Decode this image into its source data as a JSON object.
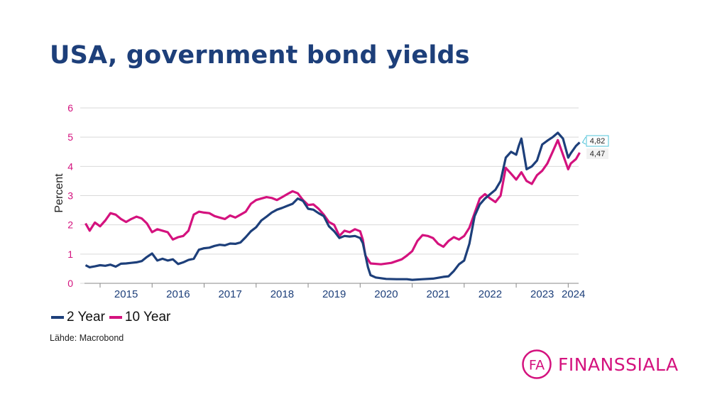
{
  "title": "USA, government bond yields",
  "source": "Lähde: Macrobond",
  "logo": {
    "mark": "FA",
    "text": "FINANSSIALA"
  },
  "colors": {
    "two_year": "#1d3f7a",
    "ten_year": "#d4127e",
    "title": "#1d3f7a",
    "grid": "#d9d9d9"
  },
  "chart_data": {
    "type": "line",
    "title": "",
    "xlabel": "",
    "ylabel": "Percent",
    "xlim": [
      2014.7,
      2024.2
    ],
    "ylim": [
      0,
      6
    ],
    "y_ticks": [
      "0",
      "1",
      "2",
      "3",
      "4",
      "5",
      "6"
    ],
    "x_ticks": [
      "2015",
      "2016",
      "2017",
      "2018",
      "2019",
      "2020",
      "2021",
      "2022",
      "2023",
      "2024"
    ],
    "grid": true,
    "legend_position": "bottom-left",
    "series": [
      {
        "name": "2 Year",
        "color": "#1d3f7a",
        "end_label": "4,82",
        "points": [
          [
            2014.72,
            0.62
          ],
          [
            2014.8,
            0.55
          ],
          [
            2014.9,
            0.58
          ],
          [
            2015.0,
            0.62
          ],
          [
            2015.1,
            0.6
          ],
          [
            2015.2,
            0.64
          ],
          [
            2015.3,
            0.57
          ],
          [
            2015.4,
            0.67
          ],
          [
            2015.5,
            0.68
          ],
          [
            2015.6,
            0.7
          ],
          [
            2015.7,
            0.72
          ],
          [
            2015.8,
            0.76
          ],
          [
            2015.9,
            0.9
          ],
          [
            2016.0,
            1.02
          ],
          [
            2016.1,
            0.78
          ],
          [
            2016.2,
            0.84
          ],
          [
            2016.3,
            0.78
          ],
          [
            2016.4,
            0.82
          ],
          [
            2016.5,
            0.66
          ],
          [
            2016.6,
            0.72
          ],
          [
            2016.7,
            0.8
          ],
          [
            2016.8,
            0.84
          ],
          [
            2016.9,
            1.15
          ],
          [
            2017.0,
            1.2
          ],
          [
            2017.1,
            1.22
          ],
          [
            2017.2,
            1.28
          ],
          [
            2017.3,
            1.32
          ],
          [
            2017.4,
            1.3
          ],
          [
            2017.5,
            1.36
          ],
          [
            2017.6,
            1.35
          ],
          [
            2017.7,
            1.4
          ],
          [
            2017.8,
            1.58
          ],
          [
            2017.9,
            1.78
          ],
          [
            2018.0,
            1.92
          ],
          [
            2018.1,
            2.15
          ],
          [
            2018.2,
            2.28
          ],
          [
            2018.3,
            2.42
          ],
          [
            2018.4,
            2.52
          ],
          [
            2018.5,
            2.58
          ],
          [
            2018.6,
            2.65
          ],
          [
            2018.7,
            2.72
          ],
          [
            2018.8,
            2.9
          ],
          [
            2018.9,
            2.82
          ],
          [
            2019.0,
            2.55
          ],
          [
            2019.1,
            2.52
          ],
          [
            2019.2,
            2.4
          ],
          [
            2019.3,
            2.3
          ],
          [
            2019.4,
            1.95
          ],
          [
            2019.5,
            1.78
          ],
          [
            2019.6,
            1.55
          ],
          [
            2019.7,
            1.62
          ],
          [
            2019.8,
            1.6
          ],
          [
            2019.9,
            1.62
          ],
          [
            2020.0,
            1.55
          ],
          [
            2020.05,
            1.38
          ],
          [
            2020.15,
            0.55
          ],
          [
            2020.2,
            0.28
          ],
          [
            2020.3,
            0.2
          ],
          [
            2020.5,
            0.15
          ],
          [
            2020.7,
            0.14
          ],
          [
            2020.9,
            0.14
          ],
          [
            2021.0,
            0.12
          ],
          [
            2021.2,
            0.14
          ],
          [
            2021.4,
            0.16
          ],
          [
            2021.6,
            0.22
          ],
          [
            2021.7,
            0.24
          ],
          [
            2021.8,
            0.42
          ],
          [
            2021.9,
            0.65
          ],
          [
            2022.0,
            0.78
          ],
          [
            2022.1,
            1.35
          ],
          [
            2022.2,
            2.3
          ],
          [
            2022.3,
            2.7
          ],
          [
            2022.4,
            2.9
          ],
          [
            2022.5,
            3.05
          ],
          [
            2022.6,
            3.2
          ],
          [
            2022.7,
            3.5
          ],
          [
            2022.8,
            4.3
          ],
          [
            2022.9,
            4.5
          ],
          [
            2023.0,
            4.4
          ],
          [
            2023.05,
            4.7
          ],
          [
            2023.1,
            4.95
          ],
          [
            2023.2,
            3.9
          ],
          [
            2023.3,
            4.0
          ],
          [
            2023.4,
            4.2
          ],
          [
            2023.5,
            4.75
          ],
          [
            2023.6,
            4.88
          ],
          [
            2023.7,
            5.0
          ],
          [
            2023.8,
            5.15
          ],
          [
            2023.9,
            4.95
          ],
          [
            2024.0,
            4.3
          ],
          [
            2024.05,
            4.45
          ],
          [
            2024.15,
            4.7
          ],
          [
            2024.22,
            4.82
          ]
        ]
      },
      {
        "name": "10 Year",
        "color": "#d4127e",
        "end_label": "4,47",
        "points": [
          [
            2014.72,
            2.05
          ],
          [
            2014.8,
            1.8
          ],
          [
            2014.9,
            2.08
          ],
          [
            2015.0,
            1.95
          ],
          [
            2015.1,
            2.15
          ],
          [
            2015.2,
            2.4
          ],
          [
            2015.3,
            2.35
          ],
          [
            2015.4,
            2.2
          ],
          [
            2015.5,
            2.1
          ],
          [
            2015.6,
            2.2
          ],
          [
            2015.7,
            2.28
          ],
          [
            2015.8,
            2.22
          ],
          [
            2015.9,
            2.05
          ],
          [
            2016.0,
            1.75
          ],
          [
            2016.1,
            1.85
          ],
          [
            2016.2,
            1.8
          ],
          [
            2016.3,
            1.75
          ],
          [
            2016.4,
            1.5
          ],
          [
            2016.5,
            1.58
          ],
          [
            2016.6,
            1.62
          ],
          [
            2016.7,
            1.8
          ],
          [
            2016.8,
            2.35
          ],
          [
            2016.9,
            2.45
          ],
          [
            2017.0,
            2.42
          ],
          [
            2017.1,
            2.4
          ],
          [
            2017.2,
            2.3
          ],
          [
            2017.3,
            2.25
          ],
          [
            2017.4,
            2.2
          ],
          [
            2017.5,
            2.32
          ],
          [
            2017.6,
            2.25
          ],
          [
            2017.7,
            2.35
          ],
          [
            2017.8,
            2.45
          ],
          [
            2017.9,
            2.72
          ],
          [
            2018.0,
            2.85
          ],
          [
            2018.1,
            2.9
          ],
          [
            2018.2,
            2.95
          ],
          [
            2018.3,
            2.92
          ],
          [
            2018.4,
            2.85
          ],
          [
            2018.5,
            2.95
          ],
          [
            2018.6,
            3.05
          ],
          [
            2018.7,
            3.15
          ],
          [
            2018.8,
            3.08
          ],
          [
            2018.9,
            2.85
          ],
          [
            2019.0,
            2.68
          ],
          [
            2019.1,
            2.7
          ],
          [
            2019.2,
            2.55
          ],
          [
            2019.3,
            2.35
          ],
          [
            2019.4,
            2.1
          ],
          [
            2019.5,
            2.0
          ],
          [
            2019.6,
            1.62
          ],
          [
            2019.7,
            1.8
          ],
          [
            2019.8,
            1.75
          ],
          [
            2019.9,
            1.85
          ],
          [
            2020.0,
            1.78
          ],
          [
            2020.05,
            1.5
          ],
          [
            2020.1,
            0.95
          ],
          [
            2020.2,
            0.68
          ],
          [
            2020.4,
            0.65
          ],
          [
            2020.6,
            0.7
          ],
          [
            2020.8,
            0.82
          ],
          [
            2020.9,
            0.95
          ],
          [
            2021.0,
            1.1
          ],
          [
            2021.1,
            1.45
          ],
          [
            2021.2,
            1.65
          ],
          [
            2021.3,
            1.62
          ],
          [
            2021.4,
            1.55
          ],
          [
            2021.5,
            1.35
          ],
          [
            2021.6,
            1.25
          ],
          [
            2021.7,
            1.45
          ],
          [
            2021.8,
            1.58
          ],
          [
            2021.9,
            1.5
          ],
          [
            2022.0,
            1.62
          ],
          [
            2022.1,
            1.9
          ],
          [
            2022.2,
            2.4
          ],
          [
            2022.3,
            2.9
          ],
          [
            2022.4,
            3.05
          ],
          [
            2022.5,
            2.9
          ],
          [
            2022.6,
            2.78
          ],
          [
            2022.7,
            3.0
          ],
          [
            2022.8,
            3.95
          ],
          [
            2022.9,
            3.75
          ],
          [
            2023.0,
            3.55
          ],
          [
            2023.1,
            3.8
          ],
          [
            2023.2,
            3.5
          ],
          [
            2023.3,
            3.4
          ],
          [
            2023.4,
            3.7
          ],
          [
            2023.5,
            3.85
          ],
          [
            2023.6,
            4.1
          ],
          [
            2023.7,
            4.5
          ],
          [
            2023.8,
            4.9
          ],
          [
            2023.9,
            4.4
          ],
          [
            2024.0,
            3.9
          ],
          [
            2024.05,
            4.1
          ],
          [
            2024.15,
            4.25
          ],
          [
            2024.22,
            4.47
          ]
        ]
      }
    ]
  }
}
